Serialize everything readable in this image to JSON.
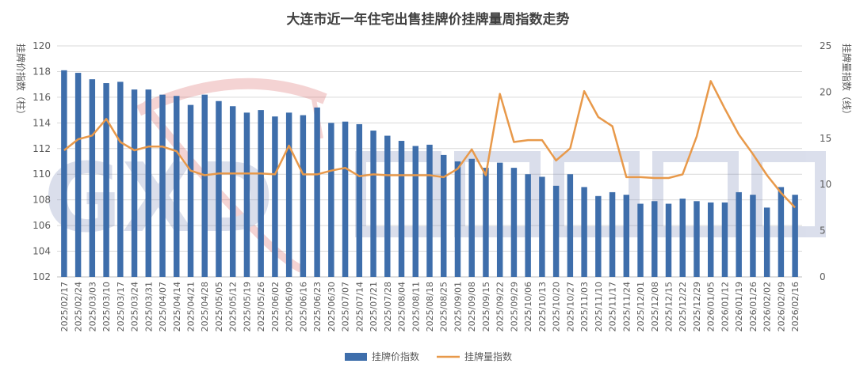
{
  "chart_data": {
    "type": "bar+line",
    "title": "大连市近一年住宅出售挂牌价挂牌量周指数走势",
    "left_axis_label": "挂牌价指数（柱）",
    "right_axis_label": "挂牌量指数（线）",
    "left_ylim": [
      102,
      120
    ],
    "left_ticks": [
      "102",
      "104",
      "106",
      "108",
      "110",
      "112",
      "114",
      "116",
      "118",
      "120"
    ],
    "right_ylim": [
      0,
      25
    ],
    "right_ticks": [
      "0",
      "5",
      "10",
      "15",
      "20",
      "25"
    ],
    "grid": true,
    "legend_position": "bottom",
    "categories": [
      "2025/02/17",
      "2025/02/24",
      "2025/03/03",
      "2025/03/10",
      "2025/03/17",
      "2025/03/24",
      "2025/03/31",
      "2025/04/07",
      "2025/04/14",
      "2025/04/21",
      "2025/04/28",
      "2025/05/05",
      "2025/05/12",
      "2025/05/19",
      "2025/05/26",
      "2025/06/02",
      "2025/06/09",
      "2025/06/16",
      "2025/06/23",
      "2025/06/30",
      "2025/07/07",
      "2025/07/14",
      "2025/07/21",
      "2025/07/28",
      "2025/08/04",
      "2025/08/11",
      "2025/08/18",
      "2025/08/25",
      "2025/09/01",
      "2025/09/08",
      "2025/09/15",
      "2025/09/22",
      "2025/09/29",
      "2025/10/06",
      "2025/10/13",
      "2025/10/20",
      "2025/10/27",
      "2025/11/03",
      "2025/11/10",
      "2025/11/17",
      "2025/11/24",
      "2025/12/01",
      "2025/12/08",
      "2025/12/15",
      "2025/12/22",
      "2025/12/29",
      "2026/01/05",
      "2026/01/12",
      "2026/01/19",
      "2026/01/26",
      "2026/02/02",
      "2026/02/09",
      "2026/02/16"
    ],
    "series": [
      {
        "name": "挂牌价指数",
        "type": "bar",
        "axis": "left",
        "color": "#3e6eab",
        "values": [
          118.1,
          117.9,
          117.4,
          117.1,
          117.2,
          116.6,
          116.6,
          116.2,
          116.1,
          115.4,
          116.2,
          115.7,
          115.3,
          114.8,
          115.0,
          114.5,
          114.8,
          114.6,
          115.2,
          114.0,
          114.1,
          113.9,
          113.4,
          113.0,
          112.6,
          112.2,
          112.3,
          111.5,
          111.0,
          111.2,
          110.5,
          110.9,
          110.5,
          110.0,
          109.8,
          109.1,
          110.0,
          109.0,
          108.3,
          108.6,
          108.4,
          107.7,
          107.9,
          107.7,
          108.1,
          107.9,
          107.8,
          107.8,
          108.6,
          108.4,
          107.4,
          109.0,
          108.4
        ]
      },
      {
        "name": "挂牌量指数",
        "type": "line",
        "axis": "right",
        "color": "#e8994a",
        "values": [
          13.7,
          14.9,
          15.3,
          17.1,
          14.6,
          13.7,
          14.1,
          14.1,
          13.6,
          11.5,
          11.0,
          11.2,
          11.2,
          11.2,
          11.2,
          11.1,
          14.2,
          11.1,
          11.1,
          11.5,
          11.8,
          10.9,
          11.1,
          11.0,
          11.0,
          11.0,
          11.0,
          10.8,
          11.7,
          13.8,
          11.0,
          19.8,
          14.6,
          14.8,
          14.8,
          12.6,
          13.9,
          20.1,
          17.3,
          16.3,
          10.8,
          10.8,
          10.7,
          10.7,
          11.1,
          15.2,
          21.2,
          18.2,
          15.4,
          13.3,
          11.0,
          9.1,
          7.5
        ]
      }
    ]
  }
}
